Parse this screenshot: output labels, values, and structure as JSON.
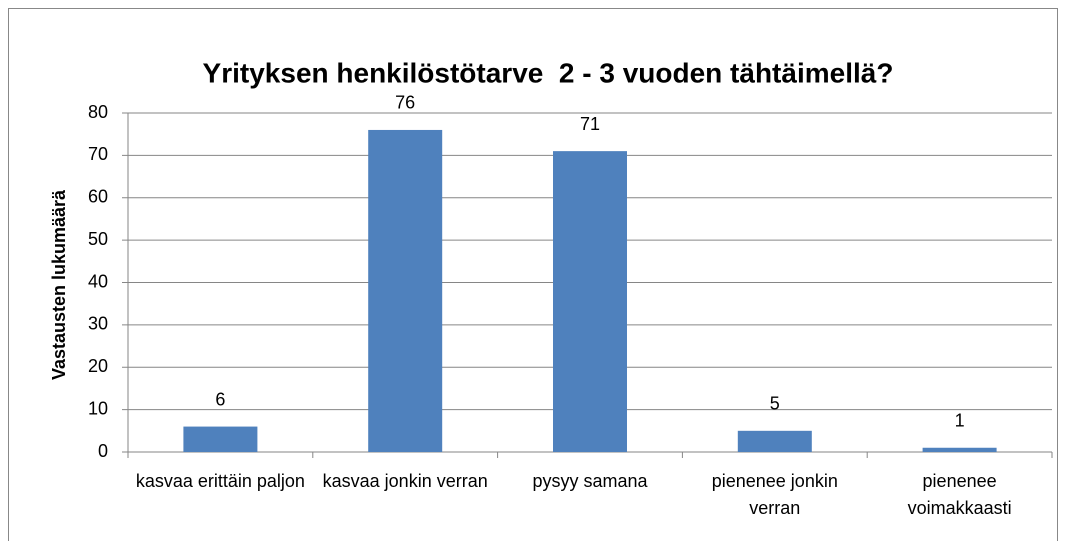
{
  "chart_data": {
    "type": "bar",
    "title": "Yrityksen henkilöstötarve  2 - 3 vuoden tähtäimellä?",
    "y_label": "Vastausten lukumäärä",
    "categories": [
      "kasvaa erittäin paljon",
      "kasvaa jonkin verran",
      "pysyy samana",
      "pienenee jonkin verran",
      "pienenee voimakkaasti"
    ],
    "values": [
      6,
      76,
      71,
      5,
      1
    ],
    "color": "#4f81bd",
    "ylim": [
      0,
      80
    ],
    "yticks": [
      0,
      10,
      20,
      30,
      40,
      50,
      60,
      70,
      80
    ],
    "grid": true
  }
}
